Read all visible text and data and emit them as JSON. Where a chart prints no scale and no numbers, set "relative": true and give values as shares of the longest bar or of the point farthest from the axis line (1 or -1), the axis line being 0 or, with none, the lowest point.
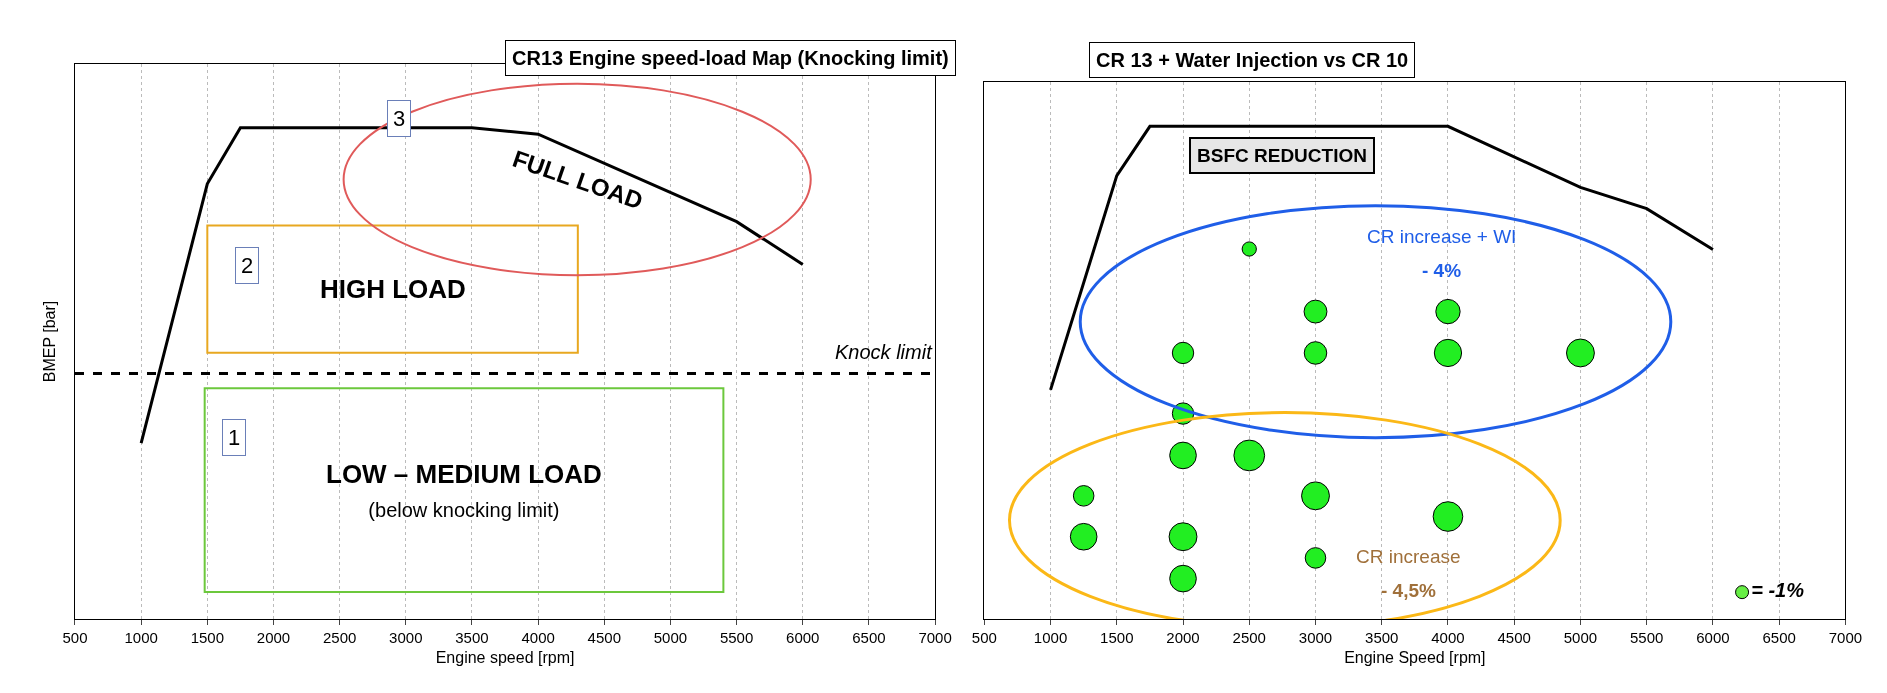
{
  "chart_data": [
    {
      "type": "line",
      "title": "CR13 Engine speed-load Map (Knocking limit)",
      "xlabel": "Engine speed [rpm]",
      "ylabel": "BMEP [bar]",
      "relative": true,
      "xlim": [
        500,
        7000
      ],
      "xticks": [
        500,
        1000,
        1500,
        2000,
        2500,
        3000,
        3500,
        4000,
        4500,
        5000,
        5500,
        6000,
        6500,
        7000
      ],
      "grid": "x",
      "marker": "none",
      "line_style": "solid",
      "x": [
        1000,
        1500,
        1750,
        3500,
        4000,
        5500,
        6000
      ],
      "series": [
        {
          "color": "#000000",
          "values": [
            0.358,
            0.886,
            1,
            1,
            0.987,
            0.809,
            0.722
          ]
        }
      ],
      "ref_lines": [
        {
          "axis": "y",
          "value": 0.5,
          "label": "Knock limit",
          "color": "#000000",
          "line_style": "dashed"
        }
      ],
      "annotations": [
        "3",
        "FULL LOAD",
        "2",
        "HIGH LOAD",
        "1",
        "LOW – MEDIUM LOAD",
        "(below knocking limit)"
      ]
    },
    {
      "type": "bubble",
      "title": "CR 13 + Water Injection vs CR 10",
      "xlabel": "Engine Speed [rpm]",
      "relative": true,
      "xlim": [
        500,
        7000
      ],
      "xticks": [
        500,
        1000,
        1500,
        2000,
        2500,
        3000,
        3500,
        4000,
        4500,
        5000,
        5500,
        6000,
        6500,
        7000
      ],
      "grid": "x",
      "size_legend": [
        {
          "value": 1,
          "label": "= -1%"
        }
      ],
      "series": [
        {
          "type": "line",
          "color": "#000000",
          "x": [
            1000,
            1500,
            1750,
            4000,
            5000,
            5500,
            6000
          ],
          "values": [
            0.465,
            0.9,
            1,
            1,
            0.876,
            0.833,
            0.75
          ]
        },
        {
          "type": "bubble",
          "color": "#22ee22",
          "x": [
            2500,
            3000,
            4000,
            2000,
            3000,
            4000,
            5000,
            2000,
            2000,
            2500,
            1250,
            3000,
            1250,
            2000,
            4000,
            3000,
            2000
          ],
          "values": [
            0.751,
            0.624,
            0.624,
            0.54,
            0.54,
            0.54,
            0.54,
            0.417,
            0.332,
            0.332,
            0.25,
            0.25,
            0.167,
            0.167,
            0.208,
            0.124,
            0.082
          ],
          "sizes": [
            1.2,
            3.1,
            3.5,
            2.7,
            3.0,
            4.4,
            4.6,
            2.7,
            4.2,
            5.6,
            2.5,
            4.6,
            4.2,
            4.6,
            5.2,
            2.5,
            4.2
          ]
        }
      ],
      "annotations": [
        "BSFC REDUCTION",
        "CR increase + WI",
        "- 4%",
        "CR increase",
        "- 4,5%"
      ]
    }
  ]
}
